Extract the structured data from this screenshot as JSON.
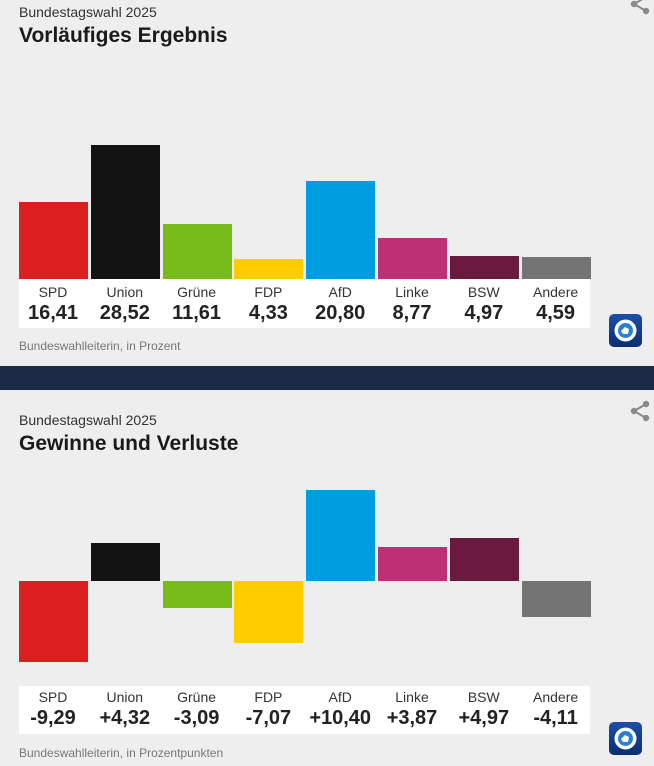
{
  "cards": [
    {
      "kicker": "Bundestagswahl 2025",
      "title": "Vorläufiges Ergebnis",
      "source": "Bundeswahlleiterin, in Prozent"
    },
    {
      "kicker": "Bundestagswahl 2025",
      "title": "Gewinne und Verluste",
      "source": "Bundeswahlleiterin, in Prozentpunkten"
    }
  ],
  "colors": {
    "SPD": "#dc1f1f",
    "Union": "#131313",
    "Grüne": "#78bc1b",
    "FDP": "#ffcc00",
    "AfD": "#009ee0",
    "Linke": "#be3075",
    "BSW": "#6b1a3f",
    "Andere": "#747474",
    "divider": "#1d2a46",
    "logo": "#1c4fa6"
  },
  "icons": [
    "share-icon",
    "tagesschau-logo-icon"
  ],
  "chart_data": [
    {
      "type": "bar",
      "categories": [
        "SPD",
        "Union",
        "Grüne",
        "FDP",
        "AfD",
        "Linke",
        "BSW",
        "Andere"
      ],
      "values": [
        16.41,
        28.52,
        11.61,
        4.33,
        20.8,
        8.77,
        4.97,
        4.59
      ],
      "value_labels": [
        "16,41",
        "28,52",
        "11,61",
        "4,33",
        "20,80",
        "8,77",
        "4,97",
        "4,59"
      ],
      "ylim": [
        0,
        28.52
      ],
      "grid": false,
      "legend": "none"
    },
    {
      "type": "bar",
      "categories": [
        "SPD",
        "Union",
        "Grüne",
        "FDP",
        "AfD",
        "Linke",
        "BSW",
        "Andere"
      ],
      "values": [
        -9.29,
        4.32,
        -3.09,
        -7.07,
        10.4,
        3.87,
        4.97,
        -4.11
      ],
      "value_labels": [
        "-9,29",
        "+4,32",
        "-3,09",
        "-7,07",
        "+10,40",
        "+3,87",
        "+4,97",
        "-4,11"
      ],
      "ylim": [
        -9.29,
        10.4
      ],
      "grid": false,
      "legend": "none"
    }
  ]
}
